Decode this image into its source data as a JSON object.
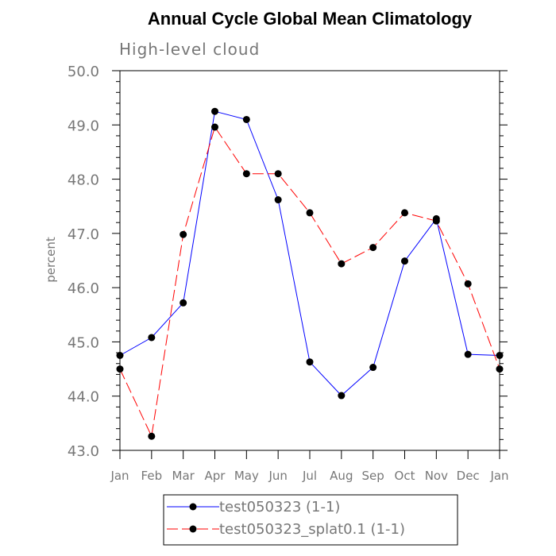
{
  "chart_data": {
    "type": "line",
    "title": "Annual Cycle Global Mean Climatology",
    "subtitle": "High-level cloud",
    "ylabel": "percent",
    "xlabel": "",
    "ylim": [
      43.0,
      50.0
    ],
    "yticks": [
      "43.0",
      "44.0",
      "45.0",
      "46.0",
      "47.0",
      "48.0",
      "49.0",
      "50.0"
    ],
    "categories": [
      "Jan",
      "Feb",
      "Mar",
      "Apr",
      "May",
      "Jun",
      "Jul",
      "Aug",
      "Sep",
      "Oct",
      "Nov",
      "Dec",
      "Jan"
    ],
    "series": [
      {
        "name": "test050323 (1-1)",
        "color": "#0000ff",
        "dash": "solid",
        "values": [
          44.75,
          45.08,
          45.72,
          49.25,
          49.1,
          47.62,
          44.63,
          44.01,
          44.53,
          46.49,
          47.27,
          44.77,
          44.75
        ]
      },
      {
        "name": "test050323_splat0.1 (1-1)",
        "color": "#ff0000",
        "dash": "dashed",
        "values": [
          44.5,
          43.26,
          46.98,
          48.96,
          48.1,
          48.1,
          47.38,
          46.44,
          46.74,
          47.38,
          47.23,
          46.07,
          44.5
        ]
      }
    ],
    "legend": {
      "position": "bottom-center",
      "entries": [
        "test050323 (1-1)",
        "test050323_splat0.1 (1-1)"
      ]
    }
  }
}
